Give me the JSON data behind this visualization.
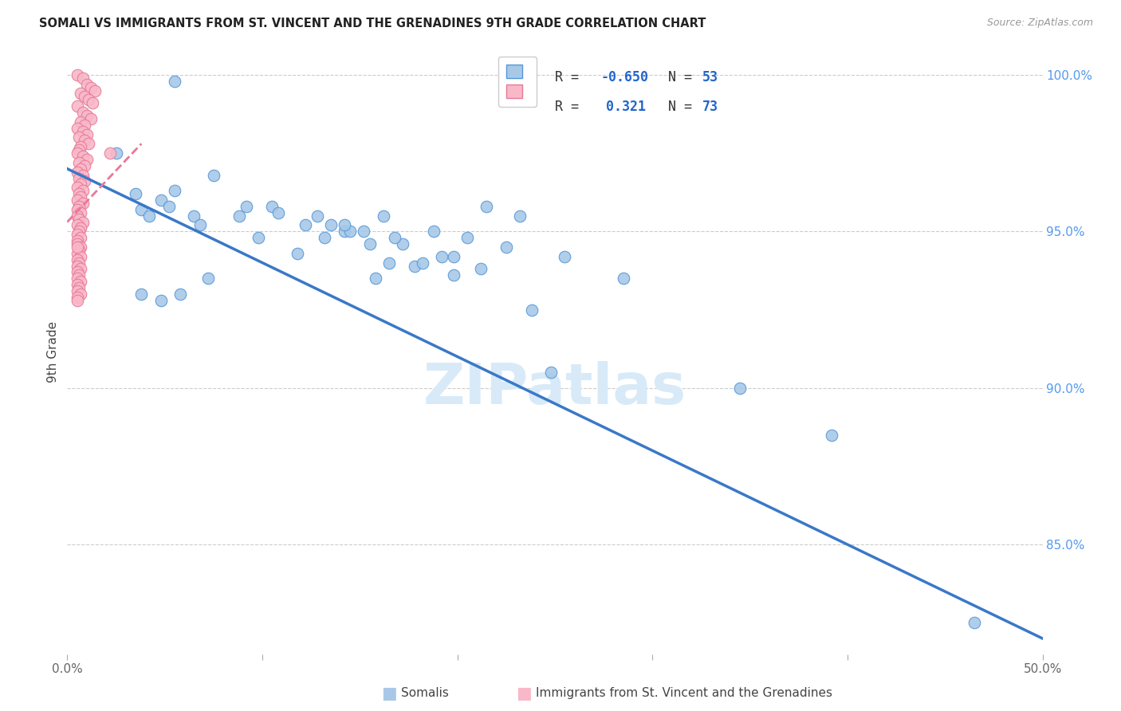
{
  "title": "SOMALI VS IMMIGRANTS FROM ST. VINCENT AND THE GRENADINES 9TH GRADE CORRELATION CHART",
  "source": "Source: ZipAtlas.com",
  "ylabel": "9th Grade",
  "xlim": [
    0.0,
    0.5
  ],
  "ylim": [
    0.815,
    1.008
  ],
  "xtick_positions": [
    0.0,
    0.1,
    0.2,
    0.3,
    0.4,
    0.5
  ],
  "xtick_labels": [
    "0.0%",
    "",
    "",
    "",
    "",
    "50.0%"
  ],
  "ytick_positions": [
    1.0,
    0.95,
    0.9,
    0.85
  ],
  "ytick_labels_right": [
    "100.0%",
    "95.0%",
    "90.0%",
    "85.0%"
  ],
  "R_blue": -0.65,
  "N_blue": 53,
  "R_pink": 0.321,
  "N_pink": 73,
  "blue_scatter_color": "#a8c8e8",
  "blue_edge_color": "#5598d8",
  "pink_scatter_color": "#f8b8c8",
  "pink_edge_color": "#e87898",
  "blue_line_color": "#3a78c8",
  "pink_line_color": "#e87898",
  "watermark_text": "ZIPatlas",
  "watermark_color": "#d8eaf8",
  "blue_line_x": [
    0.0,
    0.5
  ],
  "blue_line_y": [
    0.97,
    0.82
  ],
  "pink_line_x": [
    0.0,
    0.038
  ],
  "pink_line_y": [
    0.953,
    0.978
  ],
  "blue_scatter_x": [
    0.055,
    0.025,
    0.075,
    0.055,
    0.038,
    0.048,
    0.065,
    0.035,
    0.052,
    0.042,
    0.068,
    0.088,
    0.105,
    0.122,
    0.142,
    0.132,
    0.155,
    0.162,
    0.188,
    0.205,
    0.225,
    0.215,
    0.232,
    0.098,
    0.118,
    0.165,
    0.178,
    0.255,
    0.198,
    0.072,
    0.058,
    0.038,
    0.048,
    0.092,
    0.108,
    0.135,
    0.152,
    0.172,
    0.285,
    0.128,
    0.145,
    0.168,
    0.192,
    0.212,
    0.182,
    0.198,
    0.158,
    0.238,
    0.392,
    0.465,
    0.345,
    0.142,
    0.248
  ],
  "blue_scatter_y": [
    0.998,
    0.975,
    0.968,
    0.963,
    0.957,
    0.96,
    0.955,
    0.962,
    0.958,
    0.955,
    0.952,
    0.955,
    0.958,
    0.952,
    0.95,
    0.948,
    0.946,
    0.955,
    0.95,
    0.948,
    0.945,
    0.958,
    0.955,
    0.948,
    0.943,
    0.94,
    0.939,
    0.942,
    0.936,
    0.935,
    0.93,
    0.93,
    0.928,
    0.958,
    0.956,
    0.952,
    0.95,
    0.946,
    0.935,
    0.955,
    0.95,
    0.948,
    0.942,
    0.938,
    0.94,
    0.942,
    0.935,
    0.925,
    0.885,
    0.825,
    0.9,
    0.952,
    0.905
  ],
  "pink_scatter_x": [
    0.005,
    0.008,
    0.01,
    0.012,
    0.014,
    0.007,
    0.009,
    0.011,
    0.013,
    0.005,
    0.008,
    0.01,
    0.012,
    0.007,
    0.009,
    0.005,
    0.008,
    0.01,
    0.006,
    0.009,
    0.011,
    0.007,
    0.006,
    0.005,
    0.008,
    0.01,
    0.006,
    0.009,
    0.007,
    0.005,
    0.008,
    0.006,
    0.009,
    0.007,
    0.005,
    0.008,
    0.006,
    0.007,
    0.005,
    0.008,
    0.006,
    0.005,
    0.007,
    0.005,
    0.006,
    0.008,
    0.005,
    0.007,
    0.006,
    0.005,
    0.007,
    0.005,
    0.022,
    0.005,
    0.007,
    0.006,
    0.005,
    0.007,
    0.005,
    0.006,
    0.005,
    0.007,
    0.005,
    0.006,
    0.005,
    0.007,
    0.005,
    0.006,
    0.005,
    0.007,
    0.005,
    0.005,
    0.005
  ],
  "pink_scatter_y": [
    1.0,
    0.999,
    0.997,
    0.996,
    0.995,
    0.994,
    0.993,
    0.992,
    0.991,
    0.99,
    0.988,
    0.987,
    0.986,
    0.985,
    0.984,
    0.983,
    0.982,
    0.981,
    0.98,
    0.979,
    0.978,
    0.977,
    0.976,
    0.975,
    0.974,
    0.973,
    0.972,
    0.971,
    0.97,
    0.969,
    0.968,
    0.967,
    0.966,
    0.965,
    0.964,
    0.963,
    0.962,
    0.961,
    0.96,
    0.959,
    0.958,
    0.957,
    0.956,
    0.955,
    0.954,
    0.953,
    0.952,
    0.951,
    0.95,
    0.949,
    0.948,
    0.947,
    0.975,
    0.946,
    0.945,
    0.944,
    0.943,
    0.942,
    0.941,
    0.94,
    0.939,
    0.938,
    0.937,
    0.936,
    0.935,
    0.934,
    0.933,
    0.932,
    0.931,
    0.93,
    0.929,
    0.928,
    0.945
  ]
}
